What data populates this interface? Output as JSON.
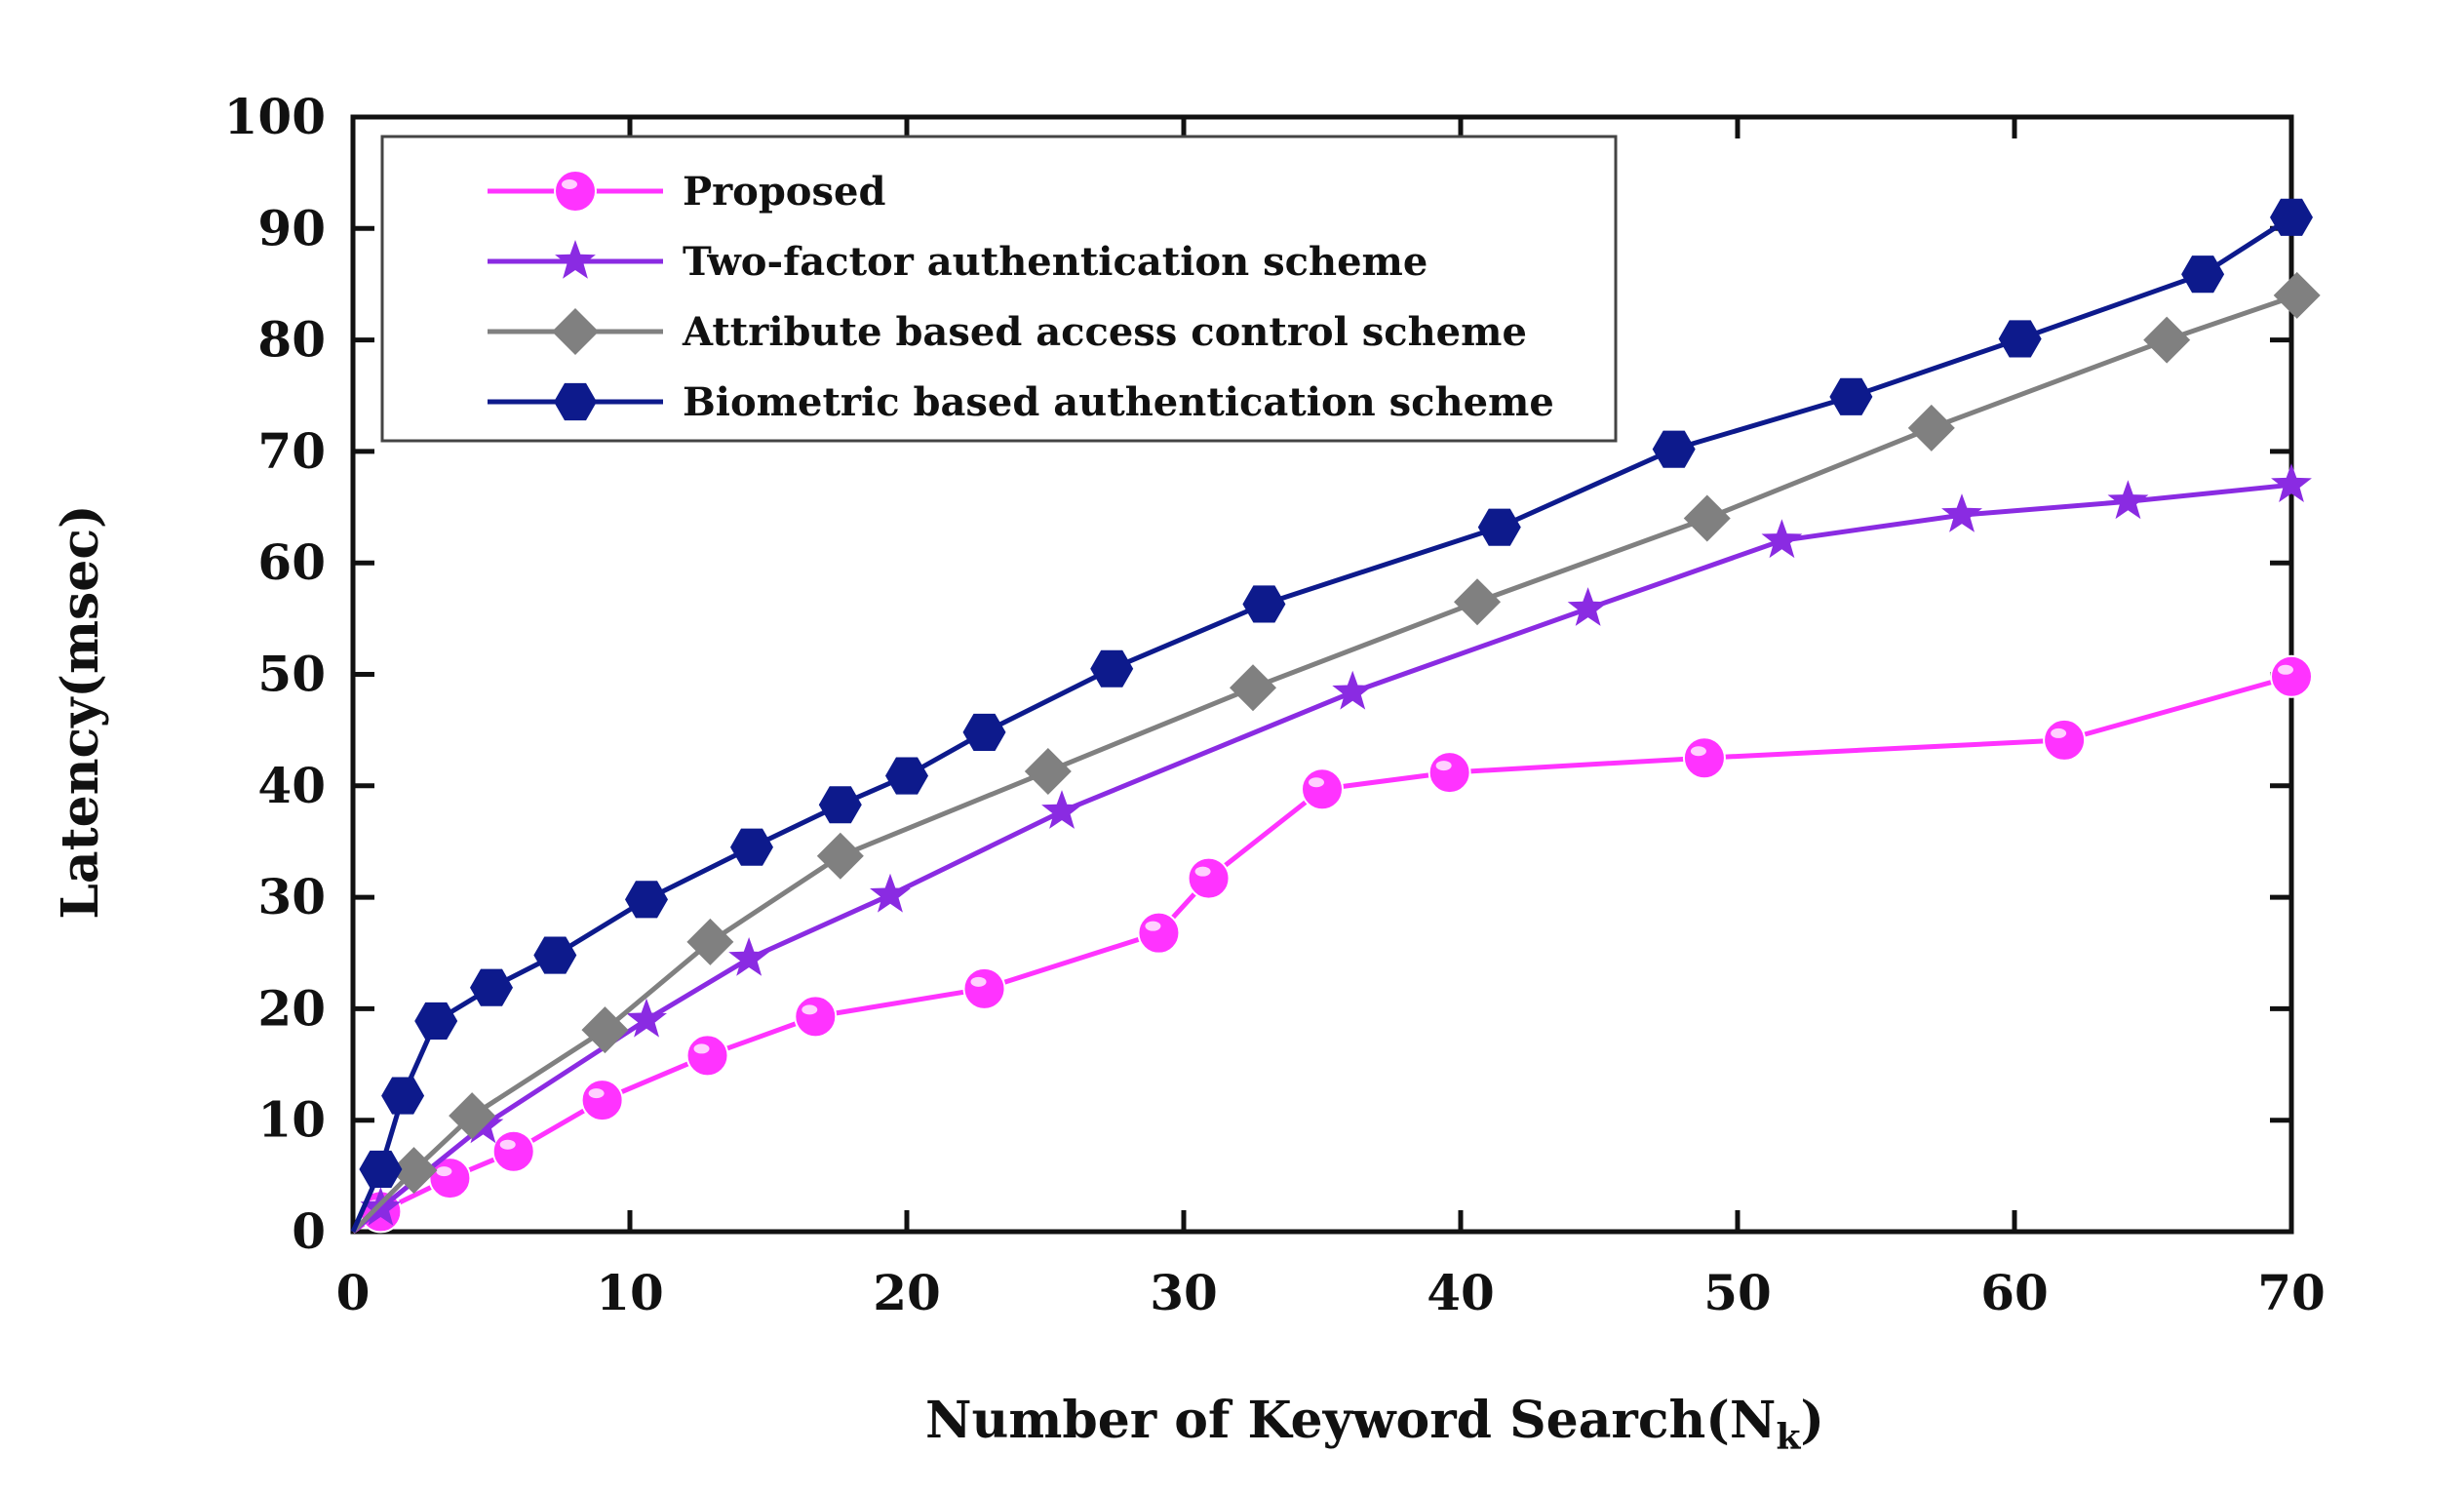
{
  "chart_data": {
    "type": "line",
    "xlabel": "Number of Keyword Search(N",
    "xlabel_subscript": "k",
    "xlabel_suffix": ")",
    "ylabel": "Latency(msec)",
    "xlim": [
      0,
      70
    ],
    "ylim": [
      0,
      100
    ],
    "xticks": [
      "0",
      "10",
      "20",
      "30",
      "40",
      "50",
      "60",
      "70"
    ],
    "yticks": [
      "0",
      "10",
      "20",
      "30",
      "40",
      "50",
      "60",
      "70",
      "80",
      "90",
      "100"
    ],
    "grid": false,
    "legend_position": "top-left",
    "series": [
      {
        "name": "Proposed",
        "color": "#ff33ff",
        "marker": "circle",
        "x": [
          0,
          1,
          3.5,
          5.8,
          9,
          12.8,
          16.7,
          22.8,
          29.1,
          30.9,
          35,
          39.6,
          48.8,
          61.8,
          70
        ],
        "y": [
          0,
          1.8,
          4.8,
          7.2,
          11.8,
          15.8,
          19.3,
          21.8,
          26.8,
          31.7,
          39.7,
          41.2,
          42.5,
          44.1,
          49.8
        ]
      },
      {
        "name": "Two-factor authentication scheme",
        "color": "#8a2be2",
        "marker": "star",
        "x": [
          0,
          1,
          4.7,
          10.6,
          14.3,
          19.4,
          25.6,
          36.1,
          44.6,
          51.6,
          58.1,
          64.1,
          70
        ],
        "y": [
          0,
          2.1,
          9.5,
          19,
          24.5,
          30.2,
          37.7,
          48.4,
          55.9,
          62,
          64.3,
          65.5,
          67
        ]
      },
      {
        "name": "Attribute based access control scheme",
        "color": "#808080",
        "marker": "diamond",
        "x": [
          0,
          2.2,
          4.3,
          9.1,
          12.9,
          17.6,
          25.1,
          32.5,
          40.6,
          48.9,
          57,
          65.5,
          70.2
        ],
        "y": [
          0,
          5.5,
          10.4,
          18.1,
          26,
          33.7,
          41.3,
          48.8,
          56.5,
          64,
          72.1,
          80,
          84
        ]
      },
      {
        "name": "Biometric based authentication scheme",
        "color": "#0d1a8c",
        "marker": "hexagon",
        "x": [
          0,
          1,
          1.8,
          3,
          5,
          7.3,
          10.6,
          14.4,
          17.6,
          20,
          22.8,
          27.4,
          32.9,
          41.4,
          47.7,
          54.1,
          60.2,
          66.8,
          70
        ],
        "y": [
          0,
          5.6,
          12.2,
          18.9,
          21.9,
          24.8,
          29.8,
          34.5,
          38.3,
          40.9,
          44.8,
          50.5,
          56.3,
          63.2,
          70.2,
          74.9,
          80.1,
          85.9,
          91
        ]
      }
    ]
  }
}
